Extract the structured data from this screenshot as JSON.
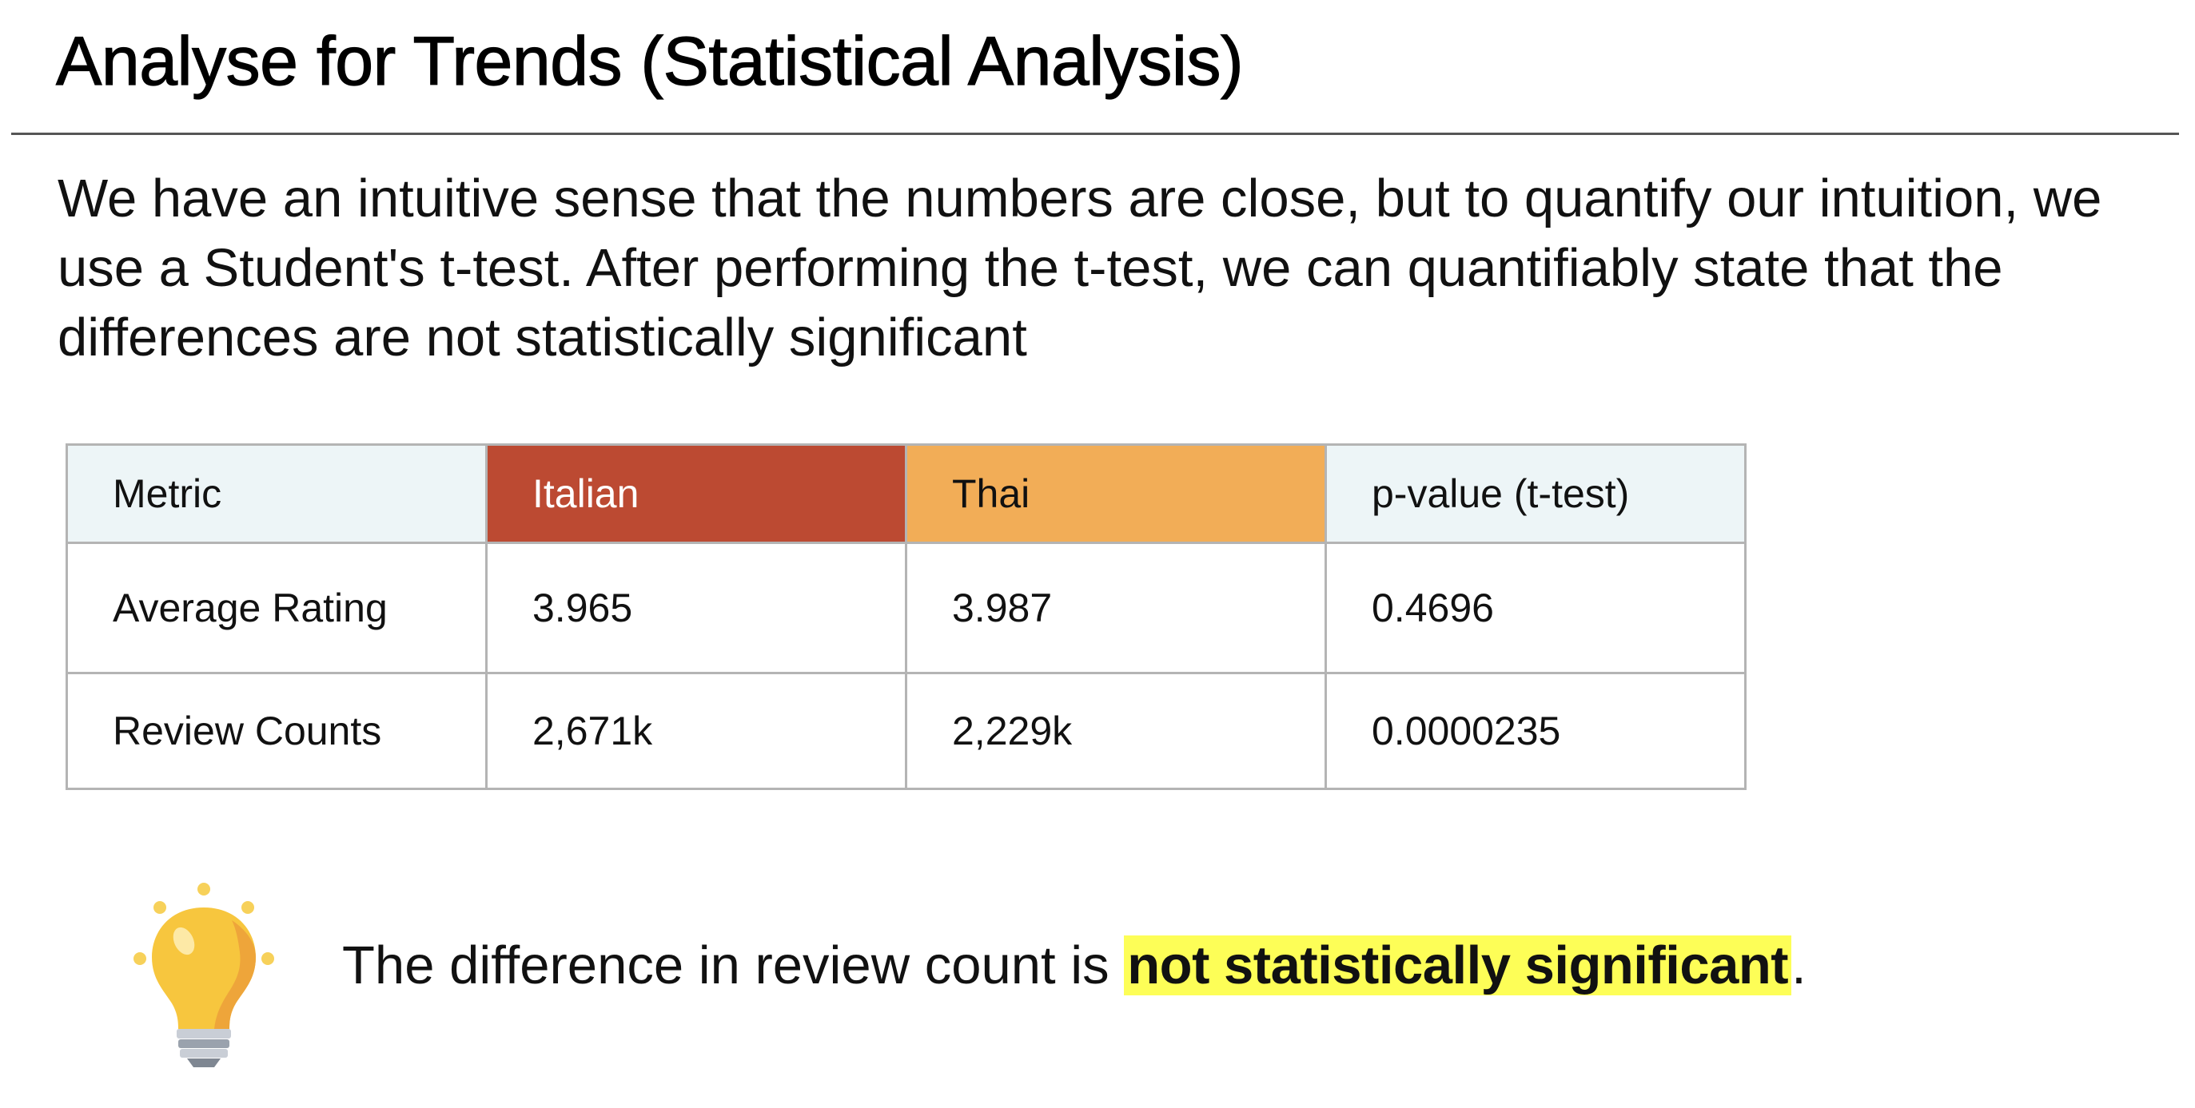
{
  "slide": {
    "title": "Analyse for Trends (Statistical Analysis)",
    "intro": "We have an intuitive sense that the numbers are close, but to quantify our intuition, we use a Student's t-test. After performing the t-test, we can quantifiably state that the differences are not statistically significant"
  },
  "table": {
    "headers": [
      "Metric",
      "Italian",
      "Thai",
      "p-value (t-test)"
    ],
    "rows": [
      [
        "Average Rating",
        "3.965",
        "3.987",
        "0.4696"
      ],
      [
        "Review Counts",
        "2,671k",
        "2,229k",
        "0.0000235"
      ]
    ],
    "header_colors": {
      "metric": "#edf5f7",
      "italian": "#bc4a32",
      "thai": "#f2ad57",
      "pvalue": "#edf5f7"
    }
  },
  "conclusion": {
    "icon": "lightbulb-icon",
    "prefix": "The difference in review count is ",
    "highlight": "not statistically significant",
    "suffix": ".",
    "highlight_color": "#fdfe57"
  }
}
